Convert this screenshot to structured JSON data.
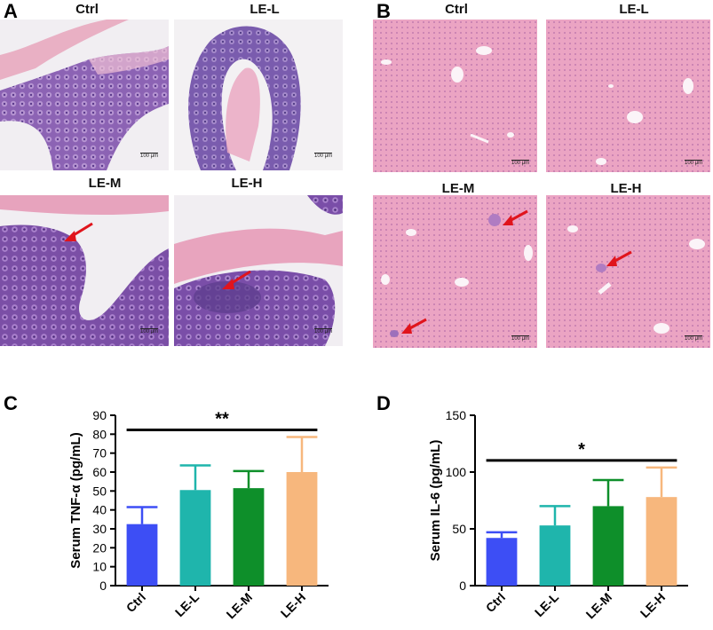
{
  "panels": {
    "A": {
      "letter": "A",
      "titles": [
        "Ctrl",
        "LE-L",
        "LE-M",
        "LE-H"
      ],
      "scale_label": "100 μm"
    },
    "B": {
      "letter": "B",
      "titles": [
        "Ctrl",
        "LE-L",
        "LE-M",
        "LE-H"
      ],
      "scale_label": "100 μm"
    },
    "C": {
      "letter": "C"
    },
    "D": {
      "letter": "D"
    }
  },
  "chart_data": [
    {
      "type": "bar",
      "panel": "C",
      "categories": [
        "Ctrl",
        "LE-L",
        "LE-M",
        "LE-H"
      ],
      "values": [
        32.5,
        50.5,
        51.5,
        60
      ],
      "error_plus": [
        9,
        13,
        9,
        18.5
      ],
      "colors": [
        "#3d4ef5",
        "#1fb5ac",
        "#0e8f2a",
        "#f7b77d"
      ],
      "ylabel": "Serum TNF-α (pg/mL)",
      "ylim": [
        0,
        90
      ],
      "yticks": [
        0,
        10,
        20,
        30,
        40,
        50,
        60,
        70,
        80,
        90
      ],
      "significance": {
        "from": "Ctrl",
        "to": "LE-H",
        "label": "**"
      }
    },
    {
      "type": "bar",
      "panel": "D",
      "categories": [
        "Ctrl",
        "LE-L",
        "LE-M",
        "LE-H"
      ],
      "values": [
        42,
        53,
        70,
        78
      ],
      "error_plus": [
        5,
        17,
        23,
        26
      ],
      "colors": [
        "#3d4ef5",
        "#1fb5ac",
        "#0e8f2a",
        "#f7b77d"
      ],
      "ylabel": "Serum IL-6 (pg/mL)",
      "ylim": [
        0,
        150
      ],
      "yticks": [
        0,
        50,
        100,
        150
      ],
      "significance": {
        "from": "Ctrl",
        "to": "LE-H",
        "label": "*"
      }
    }
  ]
}
